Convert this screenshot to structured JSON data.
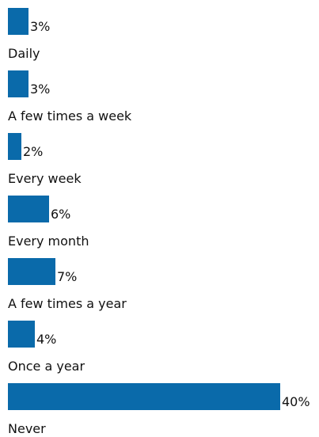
{
  "chart_data": {
    "type": "bar",
    "orientation": "horizontal",
    "categories": [
      "Daily",
      "A few times a week",
      "Every week",
      "Every month",
      "A few times a year",
      "Once a year",
      "Never"
    ],
    "values": [
      3,
      3,
      2,
      6,
      7,
      4,
      40
    ],
    "value_labels": [
      "3%",
      "3%",
      "2%",
      "6%",
      "7%",
      "4%",
      "40%"
    ],
    "unit": "%",
    "xlim": [
      0,
      40
    ],
    "grid": false,
    "legend": "none",
    "bar_color": "#0a6aaa"
  }
}
